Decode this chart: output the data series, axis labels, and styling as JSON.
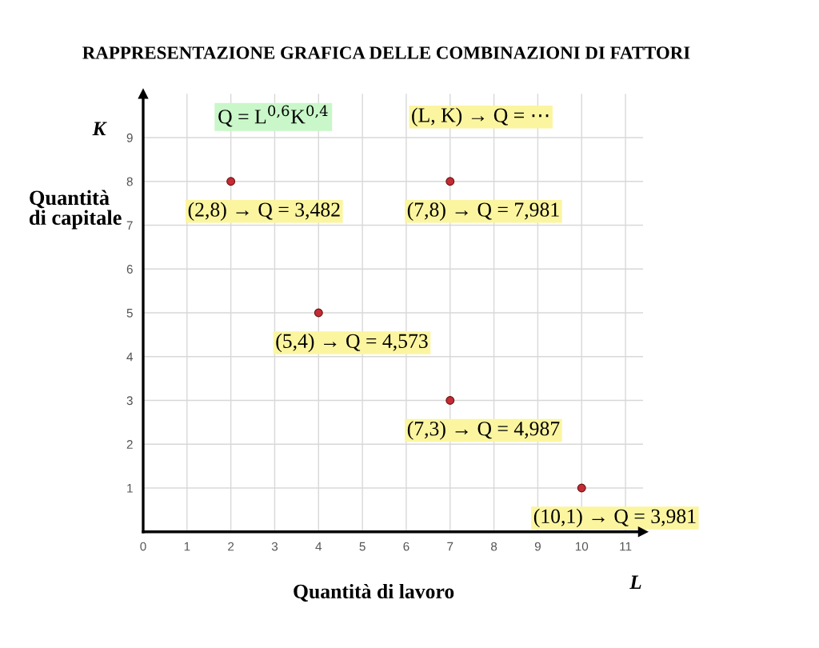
{
  "chart_data": {
    "type": "scatter",
    "title": "RAPPRESENTAZIONE GRAFICA DELLE COMBINAZIONI DI FATTORI",
    "xlabel": "Quantità di lavoro",
    "ylabel": "Quantità\ndi capitale",
    "annotations": [
      "Q = L$^{0,6}$K$^{0,4}$",
      "(L, K) → Q = ⋯",
      "K",
      "L"
    ],
    "series": [
      {
        "color": "#c42b35",
        "x": [
          2,
          7,
          4,
          7,
          10
        ],
        "values": [
          8,
          8,
          5,
          3,
          1
        ],
        "value_labels": [
          "(2,8) → Q = 3,482",
          "(7,8) → Q = 7,981",
          "(5,4) → Q = 4,573",
          "(7,3) → Q = 4,987",
          "(10,1) → Q = 3,981"
        ]
      }
    ],
    "marker": "circle",
    "grid": true,
    "xlim": [
      0,
      11.4
    ],
    "ylim": [
      0,
      10
    ],
    "xticks": [
      0,
      1,
      2,
      3,
      4,
      5,
      6,
      7,
      8,
      9,
      10,
      11
    ],
    "yticks": [
      1,
      2,
      3,
      4,
      5,
      6,
      7,
      8,
      9
    ]
  }
}
